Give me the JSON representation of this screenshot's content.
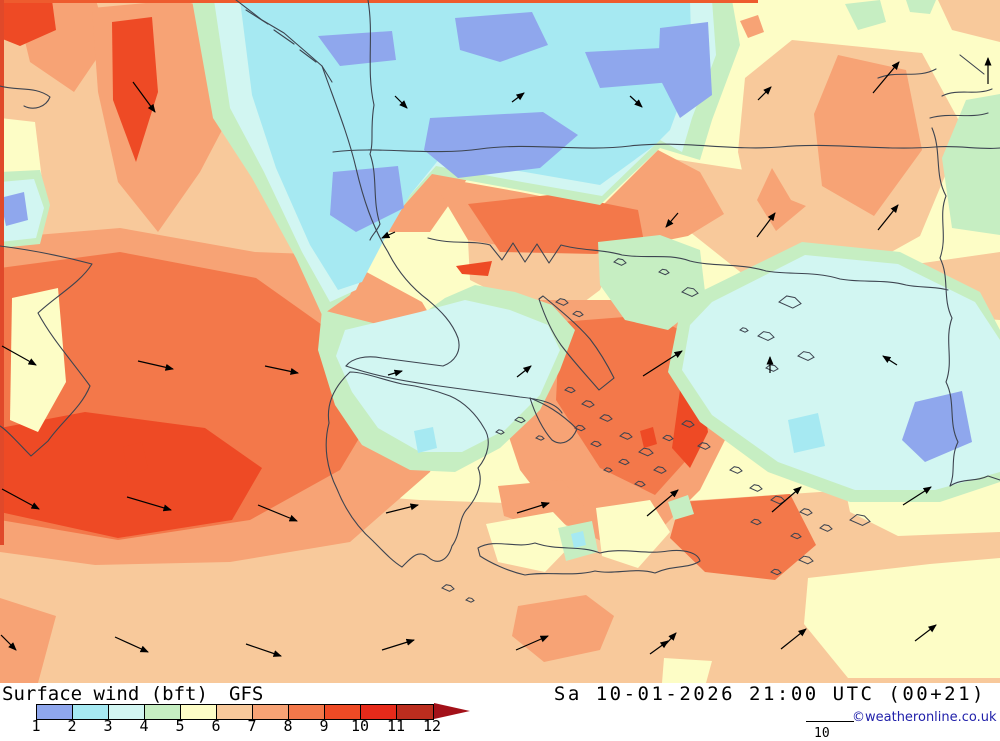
{
  "legend": {
    "title": "Surface wind (bft)",
    "model": "GFS",
    "datetime": "Sa 10-01-2026 21:00 UTC (00+21)",
    "copyright": "©weatheronline.co.uk",
    "scale_values": [
      "1",
      "2",
      "3",
      "4",
      "5",
      "6",
      "7",
      "8",
      "9",
      "10",
      "11",
      "12"
    ],
    "scale_colors": [
      "#8fa7ed",
      "#a6e9f2",
      "#d2f6f2",
      "#c6eec2",
      "#fdfdc6",
      "#f8c99b",
      "#f7a375",
      "#f3784a",
      "#ee4a25",
      "#e62a1a",
      "#bb2d1e"
    ],
    "overflow_color": "#a31119",
    "vector_scale_label": "10"
  },
  "map": {
    "palette": {
      "1": "#8fa7ed",
      "2": "#a6e9f2",
      "3": "#d2f6f2",
      "4": "#c6eec2",
      "5": "#fdfdc6",
      "6": "#f8c99b",
      "7": "#f7a375",
      "8": "#f3784a",
      "9": "#ee4a25",
      "10": "#e62a1a",
      "11": "#bb2d1e",
      "12": "#a31119"
    },
    "sea_base_level": "5",
    "coast_color": "#3d4450",
    "arrow_color": "#000000",
    "regions": [
      {
        "l": "6",
        "p": "0,0 195,0 215,115 255,180 302,262 332,306 298,342 235,332 148,300 58,270 0,256"
      },
      {
        "l": "6",
        "p": "745,78 792,40 922,53 964,130 920,236 830,286 756,236 738,152"
      },
      {
        "l": "6",
        "p": "666,158 758,172 822,242 902,266 1000,252 1000,320 878,312 758,286 690,232 666,216"
      },
      {
        "l": "6",
        "p": "938,0 1000,0 1000,42 952,30"
      },
      {
        "l": "6",
        "p": "0,462 120,470 260,488 420,500 560,505 700,500 850,490 1000,478 1000,683 0,683"
      },
      {
        "l": "6",
        "p": "468,240 540,252 618,250 600,290 560,320 510,300 470,280"
      },
      {
        "l": "7",
        "p": "15,0 96,0 108,42 74,92 30,62"
      },
      {
        "l": "7",
        "p": "92,8 178,0 250,18 242,92 200,172 158,232 118,182 98,92"
      },
      {
        "l": "7",
        "p": "282,40 425,33 465,92 472,172 430,232 378,232 328,160 300,92"
      },
      {
        "l": "7",
        "p": "0,238 120,228 255,252 335,255 422,302 468,380 430,472 350,542 230,562 95,565 0,552"
      },
      {
        "l": "7",
        "p": "430,176 520,192 600,208 658,150 700,172 724,214 688,236 618,250 538,252 468,240"
      },
      {
        "l": "7",
        "p": "540,300 620,300 690,310 730,330 740,380 725,440 700,490 660,530 610,545 560,522 520,470 500,410 510,350"
      },
      {
        "l": "7",
        "p": "518,606 586,595 614,616 600,650 544,662 512,636"
      },
      {
        "l": "7",
        "p": "0,598 56,616 38,683 0,683"
      },
      {
        "l": "7",
        "p": "498,486 562,480 584,505 552,532 504,516"
      },
      {
        "l": "7",
        "p": "838,55 906,70 922,150 874,216 822,186 814,114"
      },
      {
        "l": "7",
        "p": "772,168 791,200 806,206 776,231 757,200"
      },
      {
        "l": "7",
        "p": "688,193 706,187 712,205 694,211"
      },
      {
        "l": "7",
        "p": "740,21 758,15 764,32 748,38"
      },
      {
        "l": "8",
        "p": "0,268 120,252 256,278 332,332 382,400 340,470 250,520 118,540 0,520"
      },
      {
        "l": "8",
        "p": "468,204 558,194 638,210 644,242 596,254 500,252"
      },
      {
        "l": "8",
        "p": "560,322 650,315 700,340 715,390 700,445 655,495 600,468 556,400"
      },
      {
        "l": "8",
        "p": "680,502 790,494 816,545 775,580 705,572 670,538"
      },
      {
        "l": "9",
        "p": "0,0 52,0 56,30 20,46 0,38"
      },
      {
        "l": "9",
        "p": "112,22 152,17 158,92 136,162 113,100"
      },
      {
        "l": "9",
        "p": "368,68 420,62 433,130 412,182 380,167 366,120"
      },
      {
        "l": "9",
        "p": "0,428 85,412 205,428 262,468 232,520 118,538 0,512"
      },
      {
        "l": "9",
        "p": "123,447 142,442 148,468 128,477"
      },
      {
        "l": "9",
        "p": "456,266 492,261 488,276 462,274"
      },
      {
        "l": "9",
        "p": "640,431 653,427 657,444 644,448"
      },
      {
        "l": "9",
        "p": "680,390 700,382 708,432 690,468 672,448"
      },
      {
        "l": "5",
        "p": "12,298 58,288 66,382 38,432 10,420"
      },
      {
        "l": "5",
        "p": "0,118 35,122 42,180 28,228 0,232"
      },
      {
        "l": "5",
        "p": "486,524 553,512 578,538 545,572 498,562"
      },
      {
        "l": "5",
        "p": "596,508 650,500 670,532 638,568 602,556"
      },
      {
        "l": "5",
        "p": "808,578 930,564 1000,558 1000,678 848,678 804,624"
      },
      {
        "l": "5",
        "p": "845,488 940,479 1000,476 1000,532 898,536 850,512"
      },
      {
        "l": "5",
        "p": "664,658 712,661 706,683 662,683"
      },
      {
        "l": "4",
        "p": "192,0 732,0 740,45 712,120 700,160 660,148 600,205 520,190 432,174 400,210 372,250 350,295 322,315 296,258 252,178 213,118"
      },
      {
        "l": "4",
        "p": "322,310 400,330 445,298 475,285 515,292 552,305 575,330 560,370 540,410 500,448 455,472 410,470 362,445 335,405 318,350"
      },
      {
        "l": "4",
        "p": "598,242 660,235 700,250 706,300 668,330 625,320 600,285"
      },
      {
        "l": "4",
        "p": "700,292 802,242 900,252 980,292 1000,330 1000,482 940,502 850,502 768,472 700,422 668,372 678,322"
      },
      {
        "l": "4",
        "p": "966,100 1000,94 1000,235 952,228 942,158"
      },
      {
        "l": "4",
        "p": "845,4 880,0 886,22 858,30"
      },
      {
        "l": "4",
        "p": "906,0 936,0 930,14 910,12"
      },
      {
        "l": "4",
        "p": "668,502 688,495 694,514 674,520"
      },
      {
        "l": "4",
        "p": "558,528 592,521 598,552 566,561"
      },
      {
        "l": "4",
        "p": "0,172 40,170 50,205 40,244 0,248"
      },
      {
        "l": "3",
        "p": "214,0 712,0 716,55 692,118 682,152 660,140 602,196 522,182 436,166 404,202 378,244 356,290 330,302 302,252 264,172 230,108"
      },
      {
        "l": "3",
        "p": "712,302 805,255 898,264 975,302 1000,340 1000,472 935,490 855,490 778,462 712,415 682,370 690,325"
      },
      {
        "l": "3",
        "p": "0,182 34,179 44,208 36,238 0,242"
      },
      {
        "l": "3",
        "p": "345,330 420,312 465,300 510,310 548,325 560,350 540,395 505,430 462,452 420,452 378,428 352,392 336,356"
      },
      {
        "l": "2",
        "p": "240,0 690,0 692,70 670,130 655,145 600,185 525,172 440,158 410,195 385,238 362,282 338,290 310,245 276,168 252,95"
      },
      {
        "l": "2",
        "p": "788,420 818,413 825,446 794,453"
      },
      {
        "l": "2",
        "p": "414,431 433,427 437,448 418,453"
      },
      {
        "l": "2",
        "p": "571,534 583,531 586,545 574,548"
      },
      {
        "l": "1",
        "p": "455,18 532,12 548,45 500,62 460,50"
      },
      {
        "l": "1",
        "p": "318,36 392,31 396,60 340,66"
      },
      {
        "l": "1",
        "p": "585,52 662,48 672,82 600,88"
      },
      {
        "l": "1",
        "p": "430,118 543,112 578,135 540,168 458,178 424,150"
      },
      {
        "l": "1",
        "p": "333,172 398,166 404,208 356,232 330,215"
      },
      {
        "l": "1",
        "p": "660,28 708,22 712,95 680,118 658,75"
      },
      {
        "l": "1",
        "p": "0,198 24,192 28,220 6,226"
      },
      {
        "l": "1",
        "p": "915,402 962,391 972,442 925,462 902,440"
      }
    ],
    "edge_strips": [
      {
        "p": "0,0 758,0 758,3 0,3",
        "c": "#ee5b2e"
      },
      {
        "p": "0,0 4,0 4,545 0,545",
        "c": "#e0492a"
      }
    ],
    "coastlines": [
      "M236,0 L262,20 L284,33 L306,52 L322,66 L332,82",
      "M246,10 L268,24 M274,30 L294,44 M300,50 L316,62",
      "M0,86 C18,91 36,86 50,97 C46,107 34,111 24,106",
      "M322,66 C334,100 348,134 356,168 C363,198 372,226 388,252 C398,272 412,288 428,300 C441,311 452,322 458,338 C462,352 454,362 443,366 L382,358 C366,355 352,358 346,366",
      "M346,366 C372,375 402,381 432,385 C462,389 492,393 520,397 C540,399 556,403 562,413",
      "M350,372 C335,386 326,403 329,423 C323,446 327,469 337,489 C345,509 357,527 373,541 C383,551 392,561 402,567 C411,558 418,549 428,557 C438,566 448,560 452,546 C461,534 458,518 468,508 C477,497 484,482 478,468 C488,456 492,440 484,428 C476,414 464,402 450,396 C434,390 418,386 402,384 C384,380 364,372 350,372 Z",
      "M530,398 C545,404 560,412 577,429 C572,441 562,447 552,440 C543,430 535,414 530,398",
      "M543,296 C560,310 577,324 590,339 C600,352 608,366 614,378 L599,390 C587,376 573,361 561,345 C551,331 544,314 539,299 Z",
      "M428,238 C452,245 472,240 490,245 L502,260 L513,243 L525,262 L537,244 L549,263 L561,245 C582,251 602,249 622,255 C646,259 668,253 690,261 C714,267 740,263 766,271 C790,275 814,271 840,279 C862,283 884,279 906,285 C920,288 934,286 948,290",
      "M333,152 C380,146 430,156 480,149 C530,142 580,152 630,146 C680,140 730,151 780,147 C830,142 880,151 935,147 C958,145 980,150 1000,148",
      "M368,0 C374,35 366,70 374,105 C370,128 374,142 370,154 C378,176 372,200 380,224 C377,231 372,235 370,240",
      "M0,246 C32,250 62,256 92,264 C80,283 56,296 38,313 C52,339 72,361 90,386 C81,408 62,421 48,441 L31,456 C18,443 8,431 0,426",
      "M878,78 C898,70 918,79 936,69 M942,96 C958,88 976,96 992,89 M930,118 C950,112 970,119 988,113 M960,55 L984,74",
      "M932,128 C942,152 934,174 946,196 C938,216 948,236 940,258 C950,278 942,298 952,318 C944,340 954,360 946,382 C956,402 948,422 958,442 C950,458 956,472 950,486",
      "M950,486 C962,478 976,482 988,476 L1000,480",
      "M478,548 C495,538 515,549 535,543 C558,551 580,545 600,553 C622,547 645,555 668,551 C685,549 698,553 700,561 C688,569 672,565 655,573 C635,567 615,575 595,571 C572,577 548,571 525,575 C507,571 489,562 480,556 Z"
    ],
    "islands": [
      [
        562,
        302,
        6
      ],
      [
        578,
        314,
        5
      ],
      [
        620,
        262,
        6
      ],
      [
        664,
        272,
        5
      ],
      [
        690,
        292,
        8
      ],
      [
        790,
        302,
        11
      ],
      [
        766,
        336,
        8
      ],
      [
        744,
        330,
        4
      ],
      [
        806,
        356,
        8
      ],
      [
        772,
        368,
        6
      ],
      [
        588,
        404,
        6
      ],
      [
        606,
        418,
        6
      ],
      [
        626,
        436,
        6
      ],
      [
        596,
        444,
        5
      ],
      [
        646,
        452,
        7
      ],
      [
        668,
        438,
        5
      ],
      [
        688,
        424,
        6
      ],
      [
        624,
        462,
        5
      ],
      [
        580,
        428,
        5
      ],
      [
        704,
        446,
        6
      ],
      [
        660,
        470,
        6
      ],
      [
        640,
        484,
        5
      ],
      [
        608,
        470,
        4
      ],
      [
        736,
        470,
        6
      ],
      [
        756,
        488,
        6
      ],
      [
        778,
        500,
        7
      ],
      [
        806,
        512,
        6
      ],
      [
        756,
        522,
        5
      ],
      [
        796,
        536,
        5
      ],
      [
        826,
        528,
        6
      ],
      [
        860,
        520,
        10
      ],
      [
        806,
        560,
        7
      ],
      [
        776,
        572,
        5
      ],
      [
        448,
        588,
        6
      ],
      [
        470,
        600,
        4
      ],
      [
        520,
        420,
        5
      ],
      [
        540,
        438,
        4
      ],
      [
        500,
        432,
        4
      ],
      [
        570,
        390,
        5
      ]
    ],
    "arrows": [
      [
        133,
        82,
        155,
        112
      ],
      [
        395,
        96,
        407,
        108
      ],
      [
        512,
        102,
        524,
        93
      ],
      [
        630,
        96,
        642,
        107
      ],
      [
        758,
        100,
        771,
        87
      ],
      [
        873,
        93,
        899,
        62
      ],
      [
        988,
        84,
        988,
        58
      ],
      [
        878,
        230,
        898,
        205
      ],
      [
        757,
        237,
        775,
        213
      ],
      [
        678,
        213,
        666,
        227
      ],
      [
        395,
        232,
        382,
        238
      ],
      [
        2,
        346,
        36,
        365
      ],
      [
        138,
        361,
        173,
        369
      ],
      [
        265,
        366,
        298,
        373
      ],
      [
        388,
        375,
        402,
        371
      ],
      [
        517,
        377,
        531,
        366
      ],
      [
        643,
        376,
        682,
        351
      ],
      [
        770,
        373,
        770,
        357
      ],
      [
        897,
        365,
        883,
        356
      ],
      [
        2,
        489,
        39,
        509
      ],
      [
        127,
        497,
        171,
        510
      ],
      [
        258,
        505,
        297,
        521
      ],
      [
        386,
        513,
        418,
        505
      ],
      [
        517,
        513,
        549,
        503
      ],
      [
        647,
        516,
        678,
        490
      ],
      [
        772,
        512,
        801,
        487
      ],
      [
        903,
        505,
        931,
        487
      ],
      [
        1,
        635,
        16,
        650
      ],
      [
        115,
        637,
        148,
        652
      ],
      [
        246,
        644,
        281,
        656
      ],
      [
        382,
        650,
        414,
        640
      ],
      [
        516,
        650,
        548,
        636
      ],
      [
        650,
        654,
        668,
        641
      ],
      [
        781,
        649,
        806,
        629
      ],
      [
        915,
        641,
        936,
        625
      ],
      [
        666,
        644,
        676,
        633
      ]
    ]
  }
}
